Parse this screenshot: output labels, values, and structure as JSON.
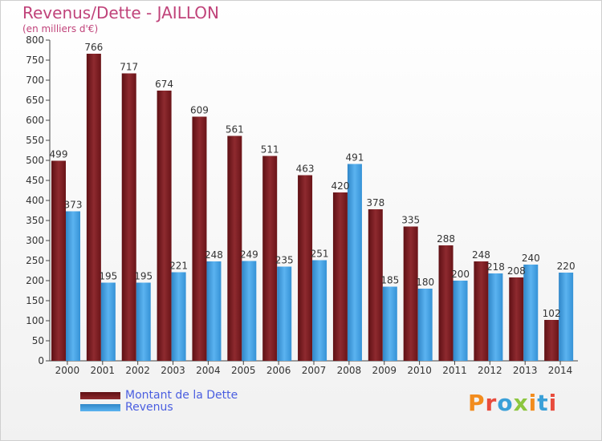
{
  "header": {
    "title": "Revenus/Dette - JAILLON",
    "subtitle": "(en milliers d'€)"
  },
  "colors": {
    "debt": "#7a1a1f",
    "revenue": "#3a9be0",
    "title": "#c0437a",
    "legend_text": "#4a5ee0"
  },
  "legend": {
    "debt_label": "Montant de la Dette",
    "revenue_label": "Revenus"
  },
  "logo": {
    "text": "Proxiti",
    "letter_colors": [
      "#f28c1e",
      "#e84b3c",
      "#3aa0d8",
      "#8cc63f",
      "#f28c1e",
      "#3aa0d8",
      "#e84b3c"
    ]
  },
  "chart_data": {
    "type": "bar",
    "categories": [
      "2000",
      "2001",
      "2002",
      "2003",
      "2004",
      "2005",
      "2006",
      "2007",
      "2008",
      "2009",
      "2010",
      "2011",
      "2012",
      "2013",
      "2014"
    ],
    "series": [
      {
        "name": "Montant de la Dette",
        "values": [
          499,
          766,
          717,
          674,
          609,
          561,
          511,
          463,
          420,
          378,
          335,
          288,
          248,
          208,
          102
        ]
      },
      {
        "name": "Revenus",
        "values": [
          373,
          195,
          195,
          221,
          248,
          249,
          235,
          251,
          491,
          185,
          180,
          200,
          218,
          240,
          220
        ]
      }
    ],
    "ylim": [
      0,
      800
    ],
    "yticks": [
      0,
      50,
      100,
      150,
      200,
      250,
      300,
      350,
      400,
      450,
      500,
      550,
      600,
      650,
      700,
      750,
      800
    ],
    "grid": false,
    "legend_position": "bottom-left"
  }
}
